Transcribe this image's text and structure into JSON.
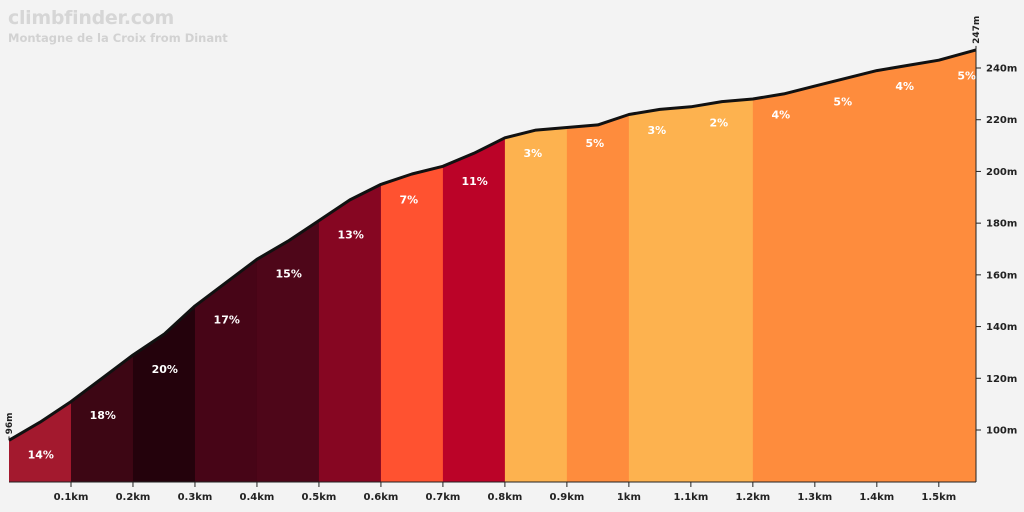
{
  "header": {
    "brand": "climbfinder.com",
    "subtitle": "Montagne de la Croix from Dinant"
  },
  "colors": {
    "background": "#f3f3f3",
    "profile_line": "#111111",
    "axis": "#222222"
  },
  "chart_data": {
    "type": "area",
    "title": "",
    "xlabel": "",
    "ylabel": "",
    "xlim": [
      0,
      1.56
    ],
    "ylim": [
      80,
      250
    ],
    "start_elevation_label": "96m",
    "end_elevation_label": "247m",
    "x_ticks": [
      {
        "value": 0.1,
        "label": "0.1km"
      },
      {
        "value": 0.2,
        "label": "0.2km"
      },
      {
        "value": 0.3,
        "label": "0.3km"
      },
      {
        "value": 0.4,
        "label": "0.4km"
      },
      {
        "value": 0.5,
        "label": "0.5km"
      },
      {
        "value": 0.6,
        "label": "0.6km"
      },
      {
        "value": 0.7,
        "label": "0.7km"
      },
      {
        "value": 0.8,
        "label": "0.8km"
      },
      {
        "value": 0.9,
        "label": "0.9km"
      },
      {
        "value": 1.0,
        "label": "1km"
      },
      {
        "value": 1.1,
        "label": "1.1km"
      },
      {
        "value": 1.2,
        "label": "1.2km"
      },
      {
        "value": 1.3,
        "label": "1.3km"
      },
      {
        "value": 1.4,
        "label": "1.4km"
      },
      {
        "value": 1.5,
        "label": "1.5km"
      }
    ],
    "y_ticks": [
      {
        "value": 100,
        "label": "100m"
      },
      {
        "value": 120,
        "label": "120m"
      },
      {
        "value": 140,
        "label": "140m"
      },
      {
        "value": 160,
        "label": "160m"
      },
      {
        "value": 180,
        "label": "180m"
      },
      {
        "value": 200,
        "label": "200m"
      },
      {
        "value": 220,
        "label": "220m"
      },
      {
        "value": 240,
        "label": "240m"
      }
    ],
    "profile": [
      [
        0.0,
        96
      ],
      [
        0.05,
        103
      ],
      [
        0.1,
        111
      ],
      [
        0.15,
        120
      ],
      [
        0.2,
        129
      ],
      [
        0.25,
        137
      ],
      [
        0.3,
        148
      ],
      [
        0.35,
        157
      ],
      [
        0.4,
        166
      ],
      [
        0.45,
        173
      ],
      [
        0.5,
        181
      ],
      [
        0.55,
        189
      ],
      [
        0.6,
        195
      ],
      [
        0.65,
        199
      ],
      [
        0.7,
        202
      ],
      [
        0.75,
        207
      ],
      [
        0.8,
        213
      ],
      [
        0.85,
        216
      ],
      [
        0.9,
        217
      ],
      [
        0.95,
        218
      ],
      [
        1.0,
        222
      ],
      [
        1.05,
        224
      ],
      [
        1.1,
        225
      ],
      [
        1.15,
        227
      ],
      [
        1.2,
        228
      ],
      [
        1.25,
        230
      ],
      [
        1.3,
        233
      ],
      [
        1.35,
        236
      ],
      [
        1.4,
        239
      ],
      [
        1.45,
        241
      ],
      [
        1.5,
        243
      ],
      [
        1.56,
        247
      ]
    ],
    "segments": [
      {
        "start": 0.0,
        "end": 0.1,
        "grade": "14%",
        "color": "#a3192e"
      },
      {
        "start": 0.1,
        "end": 0.2,
        "grade": "18%",
        "color": "#3d0614"
      },
      {
        "start": 0.2,
        "end": 0.3,
        "grade": "20%",
        "color": "#24020c"
      },
      {
        "start": 0.3,
        "end": 0.4,
        "grade": "17%",
        "color": "#470517"
      },
      {
        "start": 0.4,
        "end": 0.5,
        "grade": "15%",
        "color": "#4e0619"
      },
      {
        "start": 0.5,
        "end": 0.6,
        "grade": "13%",
        "color": "#860622"
      },
      {
        "start": 0.6,
        "end": 0.7,
        "grade": "7%",
        "color": "#ff5230"
      },
      {
        "start": 0.7,
        "end": 0.8,
        "grade": "11%",
        "color": "#bb0328"
      },
      {
        "start": 0.8,
        "end": 0.9,
        "grade": "3%",
        "color": "#fdb24f"
      },
      {
        "start": 0.9,
        "end": 1.0,
        "grade": "5%",
        "color": "#fe8c3d"
      },
      {
        "start": 1.0,
        "end": 1.2,
        "grade": "3%",
        "color": "#fdb24f"
      },
      {
        "start": 1.2,
        "end": 1.56,
        "grade": "",
        "color": "#fe8c3d"
      }
    ],
    "grade_labels": [
      {
        "x": 0.03,
        "grade": "14%"
      },
      {
        "x": 0.13,
        "grade": "18%"
      },
      {
        "x": 0.23,
        "grade": "20%"
      },
      {
        "x": 0.33,
        "grade": "17%"
      },
      {
        "x": 0.43,
        "grade": "15%"
      },
      {
        "x": 0.53,
        "grade": "13%"
      },
      {
        "x": 0.63,
        "grade": "7%"
      },
      {
        "x": 0.73,
        "grade": "11%"
      },
      {
        "x": 0.83,
        "grade": "3%"
      },
      {
        "x": 0.93,
        "grade": "5%"
      },
      {
        "x": 1.03,
        "grade": "3%"
      },
      {
        "x": 1.13,
        "grade": "2%"
      },
      {
        "x": 1.23,
        "grade": "4%"
      },
      {
        "x": 1.33,
        "grade": "5%"
      },
      {
        "x": 1.43,
        "grade": "4%"
      },
      {
        "x": 1.53,
        "grade": "5%"
      }
    ]
  }
}
